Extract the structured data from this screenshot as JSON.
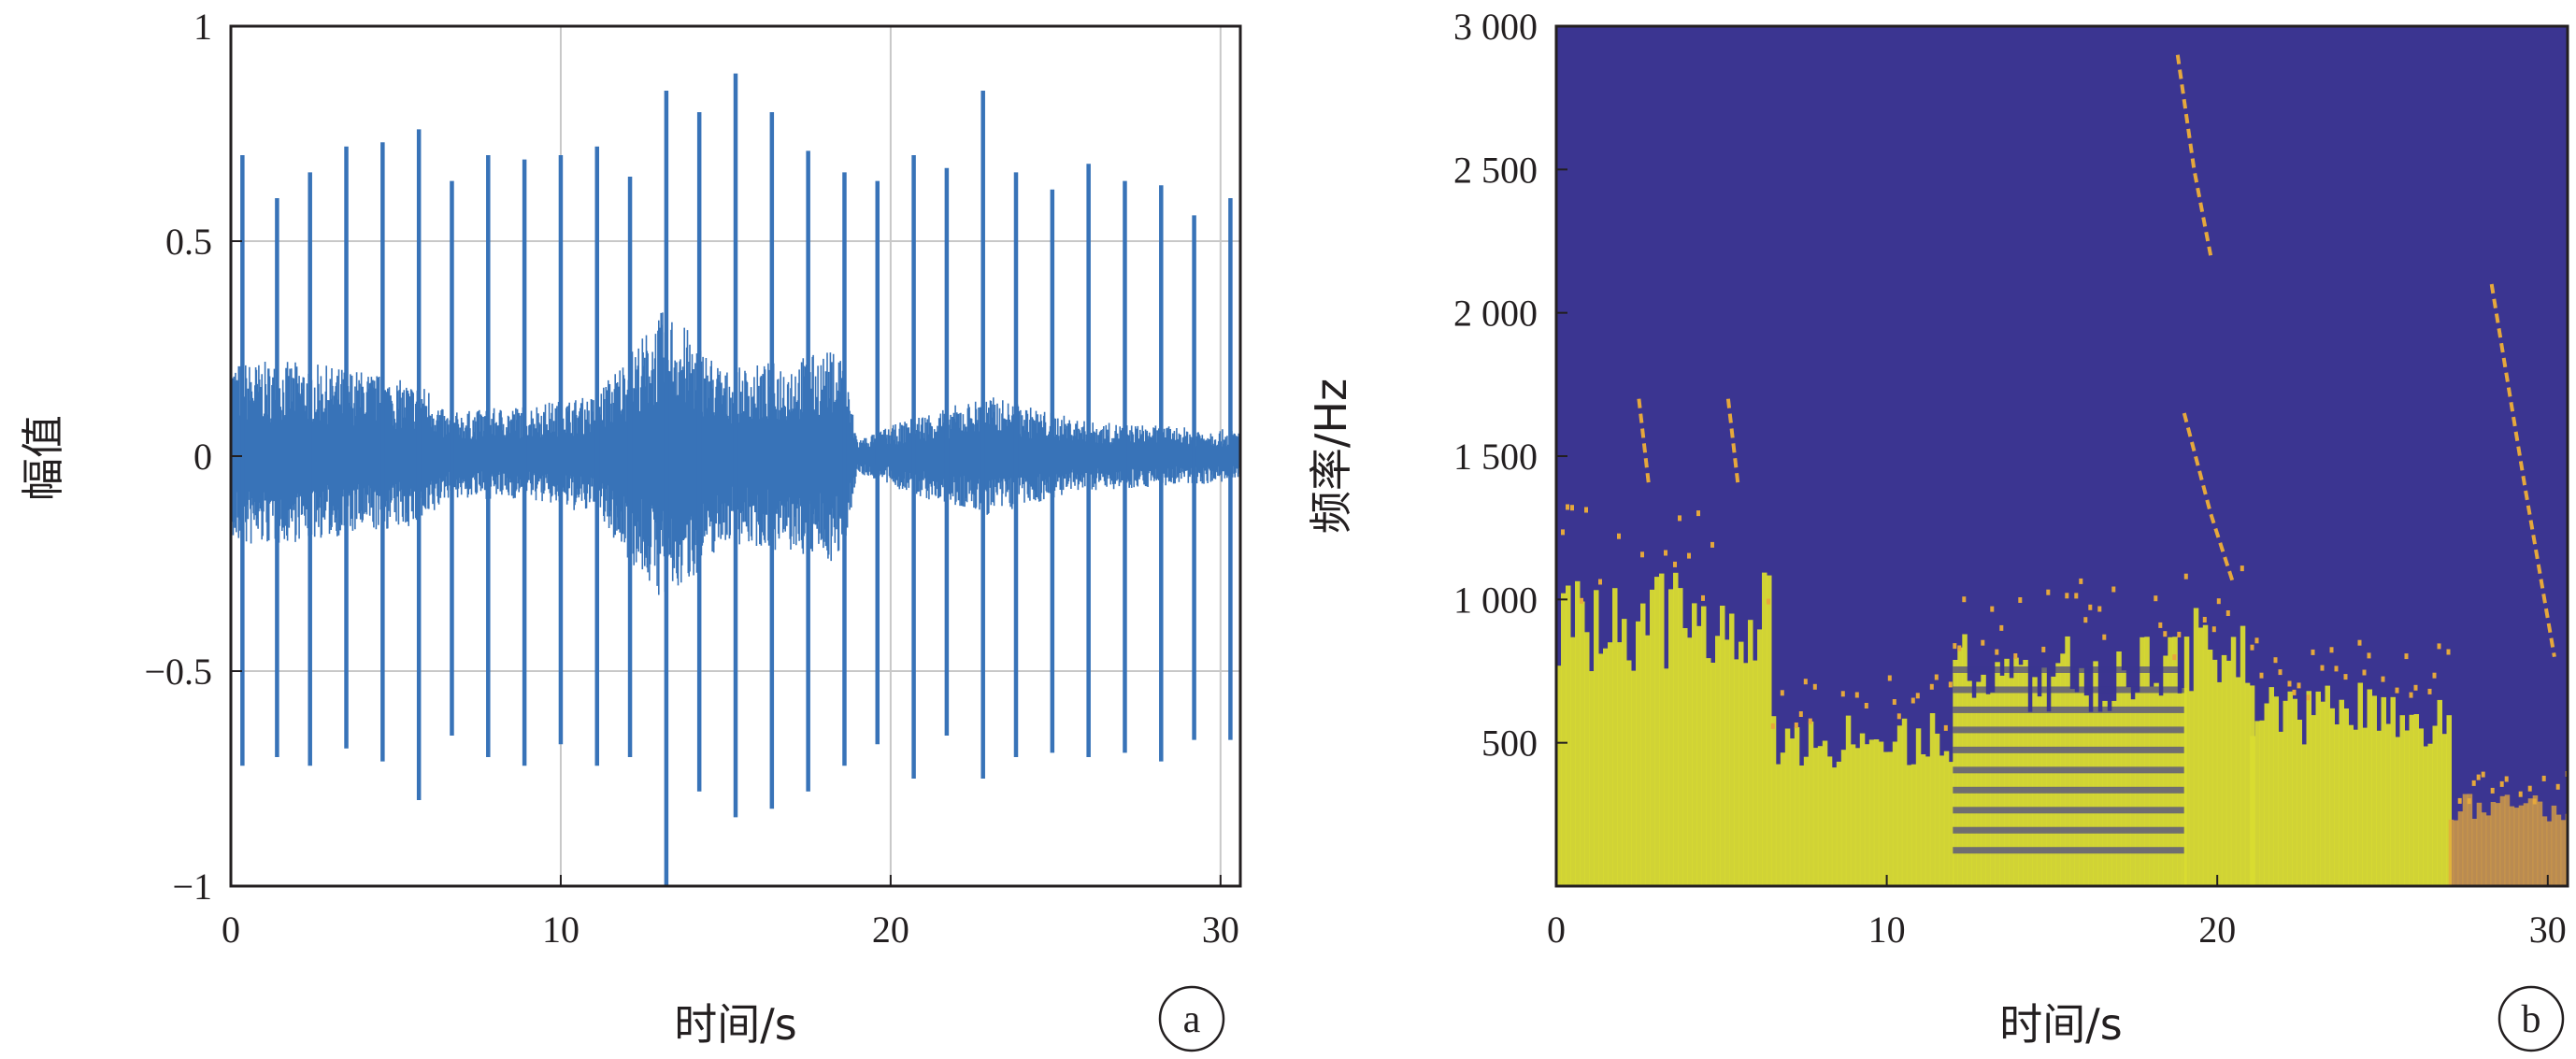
{
  "colors": {
    "waveform": "#3873b8",
    "grid": "#c8c8c8",
    "axis": "#231f20",
    "spectrogram_background": "#3b3591",
    "spectrogram_high": "#d9dc30",
    "spectrogram_mid": "#e6a83c"
  },
  "chart_data": [
    {
      "type": "line",
      "panel_label": "a",
      "xlabel": "时间/s",
      "ylabel": "幅值",
      "xlim": [
        0,
        30.6
      ],
      "ylim": [
        -1,
        1
      ],
      "grid": true,
      "x_ticks": [
        0,
        10,
        20,
        30
      ],
      "x_tick_labels": [
        "0",
        "10",
        "20",
        "30"
      ],
      "y_ticks": [
        1,
        0.5,
        0,
        -0.5,
        -1
      ],
      "y_tick_labels": [
        "1",
        "0.5",
        "0",
        "−0.5",
        "−1"
      ],
      "series": [
        {
          "description": "vibration signal envelope",
          "envelope": [
            {
              "t": 0.0,
              "upper": 0.22,
              "lower": -0.22
            },
            {
              "t": 2.0,
              "upper": 0.22,
              "lower": -0.2
            },
            {
              "t": 4.0,
              "upper": 0.2,
              "lower": -0.18
            },
            {
              "t": 6.0,
              "upper": 0.16,
              "lower": -0.16
            },
            {
              "t": 6.5,
              "upper": 0.1,
              "lower": -0.1
            },
            {
              "t": 9.0,
              "upper": 0.12,
              "lower": -0.1
            },
            {
              "t": 11.0,
              "upper": 0.14,
              "lower": -0.14
            },
            {
              "t": 13.2,
              "upper": 0.35,
              "lower": -0.35
            },
            {
              "t": 15.0,
              "upper": 0.2,
              "lower": -0.2
            },
            {
              "t": 18.5,
              "upper": 0.25,
              "lower": -0.25
            },
            {
              "t": 19.0,
              "upper": 0.04,
              "lower": -0.04
            },
            {
              "t": 21.0,
              "upper": 0.1,
              "lower": -0.1
            },
            {
              "t": 23.0,
              "upper": 0.14,
              "lower": -0.14
            },
            {
              "t": 26.0,
              "upper": 0.08,
              "lower": -0.08
            },
            {
              "t": 30.6,
              "upper": 0.06,
              "lower": -0.06
            }
          ],
          "spikes": [
            {
              "t": 0.35,
              "up": 0.7,
              "down": -0.72
            },
            {
              "t": 1.4,
              "up": 0.6,
              "down": -0.7
            },
            {
              "t": 2.4,
              "up": 0.66,
              "down": -0.72
            },
            {
              "t": 3.5,
              "up": 0.72,
              "down": -0.68
            },
            {
              "t": 4.6,
              "up": 0.73,
              "down": -0.71
            },
            {
              "t": 5.7,
              "up": 0.76,
              "down": -0.8
            },
            {
              "t": 6.7,
              "up": 0.64,
              "down": -0.65
            },
            {
              "t": 7.8,
              "up": 0.7,
              "down": -0.7
            },
            {
              "t": 8.9,
              "up": 0.69,
              "down": -0.72
            },
            {
              "t": 10.0,
              "up": 0.7,
              "down": -0.67
            },
            {
              "t": 11.1,
              "up": 0.72,
              "down": -0.72
            },
            {
              "t": 12.1,
              "up": 0.65,
              "down": -0.7
            },
            {
              "t": 13.2,
              "up": 0.85,
              "down": -1.0
            },
            {
              "t": 14.2,
              "up": 0.8,
              "down": -0.78
            },
            {
              "t": 15.3,
              "up": 0.89,
              "down": -0.84
            },
            {
              "t": 16.4,
              "up": 0.8,
              "down": -0.82
            },
            {
              "t": 17.5,
              "up": 0.71,
              "down": -0.78
            },
            {
              "t": 18.6,
              "up": 0.66,
              "down": -0.72
            },
            {
              "t": 19.6,
              "up": 0.64,
              "down": -0.67
            },
            {
              "t": 20.7,
              "up": 0.7,
              "down": -0.75
            },
            {
              "t": 21.7,
              "up": 0.67,
              "down": -0.65
            },
            {
              "t": 22.8,
              "up": 0.85,
              "down": -0.75
            },
            {
              "t": 23.8,
              "up": 0.66,
              "down": -0.7
            },
            {
              "t": 24.9,
              "up": 0.62,
              "down": -0.69
            },
            {
              "t": 26.0,
              "up": 0.68,
              "down": -0.7
            },
            {
              "t": 27.1,
              "up": 0.64,
              "down": -0.69
            },
            {
              "t": 28.2,
              "up": 0.63,
              "down": -0.71
            },
            {
              "t": 29.2,
              "up": 0.56,
              "down": -0.66
            },
            {
              "t": 30.3,
              "up": 0.6,
              "down": -0.66
            }
          ]
        }
      ]
    },
    {
      "type": "heatmap",
      "panel_label": "b",
      "xlabel": "时间/s",
      "ylabel": "频率/Hz",
      "xlim": [
        0,
        30.6
      ],
      "ylim": [
        0,
        3000
      ],
      "x_ticks": [
        0,
        10,
        20,
        30
      ],
      "x_tick_labels": [
        "0",
        "10",
        "20",
        "30"
      ],
      "y_ticks": [
        3000,
        2500,
        2000,
        1500,
        1000,
        500
      ],
      "y_tick_labels": [
        "3 000",
        "2 500",
        "2 000",
        "1 500",
        "1 000",
        "500"
      ],
      "energy_regions": [
        {
          "t_start": 0.0,
          "t_end": 6.5,
          "f_max": 1000,
          "level": "high"
        },
        {
          "t_start": 6.5,
          "t_end": 12.0,
          "f_max": 550,
          "level": "high"
        },
        {
          "t_start": 12.0,
          "t_end": 19.0,
          "f_max": 800,
          "level": "banded"
        },
        {
          "t_start": 19.0,
          "t_end": 21.0,
          "f_max": 900,
          "level": "high"
        },
        {
          "t_start": 21.0,
          "t_end": 27.0,
          "f_max": 650,
          "level": "high"
        },
        {
          "t_start": 27.0,
          "t_end": 30.6,
          "f_max": 300,
          "level": "low"
        }
      ],
      "ridges": [
        {
          "t": [
            18.8,
            19.3,
            19.8
          ],
          "f": [
            2900,
            2500,
            2200
          ]
        },
        {
          "t": [
            19.0,
            19.8,
            20.5
          ],
          "f": [
            1650,
            1300,
            1050
          ]
        },
        {
          "t": [
            28.3,
            29.3,
            30.2
          ],
          "f": [
            2100,
            1400,
            800
          ]
        },
        {
          "t": [
            2.5,
            2.8
          ],
          "f": [
            1700,
            1400
          ]
        },
        {
          "t": [
            5.2,
            5.5
          ],
          "f": [
            1700,
            1400
          ]
        }
      ]
    }
  ]
}
